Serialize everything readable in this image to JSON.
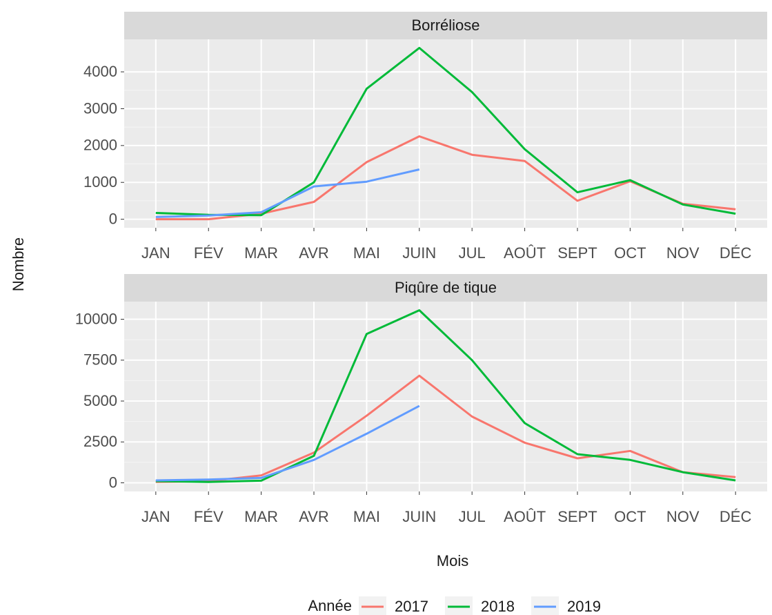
{
  "figure": {
    "xlabel": "Mois",
    "ylabel": "Nombre",
    "legend_title": "Année"
  },
  "chart_data": [
    {
      "type": "line",
      "title": "Borréliose",
      "categories": [
        "JAN",
        "FÉV",
        "MAR",
        "AVR",
        "MAI",
        "JUIN",
        "JUL",
        "AOÛT",
        "SEPT",
        "OCT",
        "NOV",
        "DÉC"
      ],
      "series": [
        {
          "name": "2017",
          "color": "#F8766D",
          "values": [
            0,
            0,
            150,
            470,
            1550,
            2250,
            1750,
            1580,
            500,
            1030,
            420,
            270
          ]
        },
        {
          "name": "2018",
          "color": "#00BA38",
          "values": [
            170,
            120,
            110,
            1000,
            3540,
            4650,
            3450,
            1900,
            730,
            1060,
            400,
            150
          ]
        },
        {
          "name": "2019",
          "color": "#619CFF",
          "values": [
            60,
            100,
            190,
            890,
            1020,
            1350,
            null,
            null,
            null,
            null,
            null,
            null
          ]
        }
      ],
      "ylim": [
        -232,
        4882
      ],
      "yticks": [
        0,
        1000,
        2000,
        3000,
        4000
      ],
      "grid": true
    },
    {
      "type": "line",
      "title": "Piqûre de tique",
      "categories": [
        "JAN",
        "FÉV",
        "MAR",
        "AVR",
        "MAI",
        "JUIN",
        "JUL",
        "AOÛT",
        "SEPT",
        "OCT",
        "NOV",
        "DÉC"
      ],
      "series": [
        {
          "name": "2017",
          "color": "#F8766D",
          "values": [
            50,
            100,
            450,
            1850,
            4100,
            6550,
            4050,
            2450,
            1500,
            1950,
            650,
            350
          ]
        },
        {
          "name": "2018",
          "color": "#00BA38",
          "values": [
            100,
            50,
            130,
            1650,
            9100,
            10550,
            7500,
            3650,
            1750,
            1400,
            650,
            150
          ]
        },
        {
          "name": "2019",
          "color": "#619CFF",
          "values": [
            150,
            200,
            300,
            1400,
            3000,
            4700,
            null,
            null,
            null,
            null,
            null,
            null
          ]
        }
      ],
      "ylim": [
        -527,
        11077
      ],
      "yticks": [
        0,
        2500,
        5000,
        7500,
        10000
      ],
      "grid": true
    }
  ]
}
